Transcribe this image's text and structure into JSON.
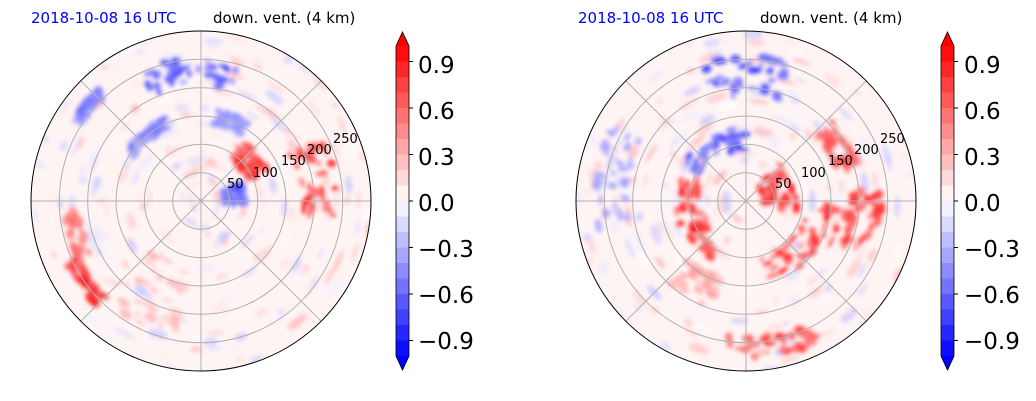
{
  "colors": {
    "title_date": "#0000ff",
    "max": "#ff0000",
    "min": "#0000ff",
    "mid": "#ffffff",
    "grid": "#b0b0b0"
  },
  "chart_data": [
    {
      "type": "heatmap",
      "projection": "polar",
      "title_date": "2018-10-08 16 UTC",
      "title_var": "down. vent. (4 km)",
      "radial_ticks": [
        "50",
        "100",
        "150",
        "200",
        "250"
      ],
      "radial_values": [
        50,
        100,
        150,
        200,
        250
      ],
      "rmax": 300,
      "grid": true,
      "colorbar": {
        "ticks": [
          "0.9",
          "0.6",
          "0.3",
          "0.0",
          "−0.3",
          "−0.6",
          "−0.9"
        ],
        "values": [
          0.9,
          0.6,
          0.3,
          0.0,
          -0.3,
          -0.6,
          -0.9
        ],
        "vmin": -1.0,
        "vmax": 1.0,
        "levels": 20,
        "extend": "both",
        "cmap": "bwr"
      },
      "features": [
        {
          "r": 230,
          "theta_deg": 95,
          "value": -0.8,
          "dr": 25,
          "dtheta": 40
        },
        {
          "r": 150,
          "theta_deg": 70,
          "value": -0.5,
          "dr": 15,
          "dtheta": 20
        },
        {
          "r": 110,
          "theta_deg": 40,
          "value": 0.9,
          "dr": 20,
          "dtheta": 30
        },
        {
          "r": 60,
          "theta_deg": 10,
          "value": -0.7,
          "dr": 20,
          "dtheta": 30
        },
        {
          "r": 210,
          "theta_deg": 10,
          "value": 0.95,
          "dr": 35,
          "dtheta": 35
        },
        {
          "r": 230,
          "theta_deg": 195,
          "value": 0.7,
          "dr": 15,
          "dtheta": 20
        },
        {
          "r": 250,
          "theta_deg": 215,
          "value": 0.95,
          "dr": 12,
          "dtheta": 20
        },
        {
          "r": 150,
          "theta_deg": 130,
          "value": -0.6,
          "dr": 10,
          "dtheta": 30
        },
        {
          "r": 260,
          "theta_deg": 140,
          "value": -0.6,
          "dr": 10,
          "dtheta": 15
        },
        {
          "r": 180,
          "theta_deg": 240,
          "value": 0.3,
          "dr": 60,
          "dtheta": 40
        }
      ]
    },
    {
      "type": "heatmap",
      "projection": "polar",
      "title_date": "2018-10-08 16 UTC",
      "title_var": "down. vent. (4 km)",
      "radial_ticks": [
        "50",
        "100",
        "150",
        "200",
        "250"
      ],
      "radial_values": [
        50,
        100,
        150,
        200,
        250
      ],
      "rmax": 300,
      "grid": true,
      "colorbar": {
        "ticks": [
          "0.9",
          "0.6",
          "0.3",
          "0.0",
          "−0.3",
          "−0.6",
          "−0.9"
        ],
        "values": [
          0.9,
          0.6,
          0.3,
          0.0,
          -0.3,
          -0.6,
          -0.9
        ],
        "vmin": -1.0,
        "vmax": 1.0,
        "levels": 20,
        "extend": "both",
        "cmap": "bwr"
      },
      "features": [
        {
          "r": 220,
          "theta_deg": 90,
          "value": -0.8,
          "dr": 35,
          "dtheta": 35
        },
        {
          "r": 110,
          "theta_deg": 120,
          "value": -0.8,
          "dr": 20,
          "dtheta": 60
        },
        {
          "r": 60,
          "theta_deg": 20,
          "value": 0.95,
          "dr": 30,
          "dtheta": 60
        },
        {
          "r": 100,
          "theta_deg": 200,
          "value": 0.95,
          "dr": 25,
          "dtheta": 80
        },
        {
          "r": 140,
          "theta_deg": 320,
          "value": 0.95,
          "dr": 35,
          "dtheta": 70
        },
        {
          "r": 210,
          "theta_deg": 350,
          "value": 0.9,
          "dr": 30,
          "dtheta": 30
        },
        {
          "r": 260,
          "theta_deg": 280,
          "value": 0.8,
          "dr": 20,
          "dtheta": 35
        },
        {
          "r": 190,
          "theta_deg": 30,
          "value": 0.8,
          "dr": 20,
          "dtheta": 25
        },
        {
          "r": 240,
          "theta_deg": 170,
          "value": -0.4,
          "dr": 30,
          "dtheta": 40
        },
        {
          "r": 170,
          "theta_deg": 240,
          "value": 0.4,
          "dr": 30,
          "dtheta": 30
        }
      ]
    }
  ]
}
